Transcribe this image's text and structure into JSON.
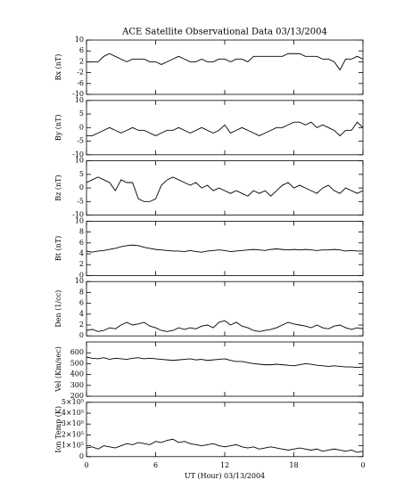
{
  "chart_data": [
    {
      "type": "line",
      "title": "ACE Satellite Observational Data   03/13/2004",
      "ylabel": "Bx (nT)",
      "color": "#000000",
      "xlim": [
        0,
        24
      ],
      "xticks": [
        0,
        6,
        12,
        18,
        {
          "value": 24,
          "label": "0"
        }
      ],
      "ylim": [
        -10,
        10
      ],
      "yticks": [
        -10,
        -6,
        -2,
        2,
        6,
        10
      ],
      "x": [
        0,
        0.5,
        1,
        1.5,
        2,
        2.5,
        3,
        3.5,
        4,
        4.5,
        5,
        5.5,
        6,
        6.5,
        7,
        7.5,
        8,
        8.5,
        9,
        9.5,
        10,
        10.5,
        11,
        11.5,
        12,
        12.5,
        13,
        13.5,
        14,
        14.5,
        15,
        15.5,
        16,
        16.5,
        17,
        17.5,
        18,
        18.5,
        19,
        19.5,
        20,
        20.5,
        21,
        21.5,
        22,
        22.5,
        23,
        23.5,
        24
      ],
      "values": [
        2,
        2,
        2,
        4,
        5,
        4,
        3,
        2,
        3,
        3,
        3,
        2,
        2,
        1,
        2,
        3,
        4,
        3,
        2,
        2,
        3,
        2,
        2,
        3,
        3,
        2,
        3,
        3,
        2,
        4,
        4,
        4,
        4,
        4,
        4,
        5,
        5,
        5,
        4,
        4,
        4,
        3,
        3,
        2,
        -1,
        3,
        3,
        4,
        3
      ]
    },
    {
      "type": "line",
      "ylabel": "By (nT)",
      "color": "#000000",
      "xlim": [
        0,
        24
      ],
      "xticks": [
        0,
        6,
        12,
        18,
        {
          "value": 24,
          "label": "0"
        }
      ],
      "ylim": [
        -10,
        10
      ],
      "yticks": [
        -10,
        -5,
        0,
        5,
        10
      ],
      "x": [
        0,
        0.5,
        1,
        1.5,
        2,
        2.5,
        3,
        3.5,
        4,
        4.5,
        5,
        5.5,
        6,
        6.5,
        7,
        7.5,
        8,
        8.5,
        9,
        9.5,
        10,
        10.5,
        11,
        11.5,
        12,
        12.5,
        13,
        13.5,
        14,
        14.5,
        15,
        15.5,
        16,
        16.5,
        17,
        17.5,
        18,
        18.5,
        19,
        19.5,
        20,
        20.5,
        21,
        21.5,
        22,
        22.5,
        23,
        23.5,
        24
      ],
      "values": [
        -3,
        -3,
        -2,
        -1,
        0,
        -1,
        -2,
        -1,
        0,
        -1,
        -1,
        -2,
        -3,
        -2,
        -1,
        -1,
        0,
        -1,
        -2,
        -1,
        0,
        -1,
        -2,
        -1,
        1,
        -2,
        -1,
        0,
        -1,
        -2,
        -3,
        -2,
        -1,
        0,
        0,
        1,
        2,
        2,
        1,
        2,
        0,
        1,
        0,
        -1,
        -3,
        -1,
        -1,
        2,
        0
      ]
    },
    {
      "type": "line",
      "ylabel": "Bz (nT)",
      "color": "#000000",
      "xlim": [
        0,
        24
      ],
      "xticks": [
        0,
        6,
        12,
        18,
        {
          "value": 24,
          "label": "0"
        }
      ],
      "ylim": [
        -10,
        10
      ],
      "yticks": [
        -10,
        -5,
        0,
        5,
        10
      ],
      "x": [
        0,
        0.5,
        1,
        1.5,
        2,
        2.5,
        3,
        3.5,
        4,
        4.5,
        5,
        5.5,
        6,
        6.5,
        7,
        7.5,
        8,
        8.5,
        9,
        9.5,
        10,
        10.5,
        11,
        11.5,
        12,
        12.5,
        13,
        13.5,
        14,
        14.5,
        15,
        15.5,
        16,
        16.5,
        17,
        17.5,
        18,
        18.5,
        19,
        19.5,
        20,
        20.5,
        21,
        21.5,
        22,
        22.5,
        23,
        23.5,
        24
      ],
      "values": [
        2,
        3,
        4,
        3,
        2,
        -1,
        3,
        2,
        2,
        -4,
        -5,
        -5,
        -4,
        1,
        3,
        4,
        3,
        2,
        1,
        2,
        0,
        1,
        -1,
        0,
        -1,
        -2,
        -1,
        -2,
        -3,
        -1,
        -2,
        -1,
        -3,
        -1,
        1,
        2,
        0,
        1,
        0,
        -1,
        -2,
        0,
        1,
        -1,
        -2,
        0,
        -1,
        -2,
        -1
      ]
    },
    {
      "type": "line",
      "ylabel": "Bt (nT)",
      "color": "#000000",
      "xlim": [
        0,
        24
      ],
      "xticks": [
        0,
        6,
        12,
        18,
        {
          "value": 24,
          "label": "0"
        }
      ],
      "ylim": [
        0,
        10
      ],
      "yticks": [
        0,
        2,
        4,
        6,
        8,
        10
      ],
      "x": [
        0,
        0.5,
        1,
        1.5,
        2,
        2.5,
        3,
        3.5,
        4,
        4.5,
        5,
        5.5,
        6,
        6.5,
        7,
        7.5,
        8,
        8.5,
        9,
        9.5,
        10,
        10.5,
        11,
        11.5,
        12,
        12.5,
        13,
        13.5,
        14,
        14.5,
        15,
        15.5,
        16,
        16.5,
        17,
        17.5,
        18,
        18.5,
        19,
        19.5,
        20,
        20.5,
        21,
        21.5,
        22,
        22.5,
        23,
        23.5,
        24
      ],
      "values": [
        4.5,
        4.3,
        4.5,
        4.6,
        4.8,
        5,
        5.3,
        5.5,
        5.6,
        5.5,
        5.2,
        5,
        4.8,
        4.7,
        4.6,
        4.5,
        4.5,
        4.4,
        4.6,
        4.4,
        4.3,
        4.5,
        4.6,
        4.7,
        4.6,
        4.4,
        4.5,
        4.6,
        4.7,
        4.8,
        4.7,
        4.6,
        4.8,
        4.9,
        4.8,
        4.7,
        4.8,
        4.7,
        4.8,
        4.7,
        4.6,
        4.7,
        4.7,
        4.8,
        4.7,
        4.5,
        4.6,
        4.5,
        4.5
      ]
    },
    {
      "type": "line",
      "ylabel": "Den (1/cc)",
      "color": "#000000",
      "xlim": [
        0,
        24
      ],
      "xticks": [
        0,
        6,
        12,
        18,
        {
          "value": 24,
          "label": "0"
        }
      ],
      "ylim": [
        0,
        10
      ],
      "yticks": [
        0,
        2,
        4,
        6,
        8,
        10
      ],
      "x": [
        0,
        0.5,
        1,
        1.5,
        2,
        2.5,
        3,
        3.5,
        4,
        4.5,
        5,
        5.5,
        6,
        6.5,
        7,
        7.5,
        8,
        8.5,
        9,
        9.5,
        10,
        10.5,
        11,
        11.5,
        12,
        12.5,
        13,
        13.5,
        14,
        14.5,
        15,
        15.5,
        16,
        16.5,
        17,
        17.5,
        18,
        18.5,
        19,
        19.5,
        20,
        20.5,
        21,
        21.5,
        22,
        22.5,
        23,
        23.5,
        24
      ],
      "values": [
        1,
        1.2,
        0.8,
        1,
        1.5,
        1.3,
        2,
        2.5,
        2,
        2.2,
        2.5,
        1.8,
        1.5,
        1,
        0.8,
        1,
        1.5,
        1.2,
        1.5,
        1.3,
        1.8,
        2,
        1.5,
        2.5,
        2.8,
        2,
        2.5,
        1.8,
        1.5,
        1,
        0.8,
        1,
        1.2,
        1.5,
        2,
        2.5,
        2.2,
        2,
        1.8,
        1.5,
        2,
        1.5,
        1.3,
        1.8,
        2,
        1.5,
        1.2,
        1.5,
        1.3
      ]
    },
    {
      "type": "line",
      "ylabel": "Vel (Km/sec)",
      "color": "#000000",
      "xlim": [
        0,
        24
      ],
      "xticks": [
        0,
        6,
        12,
        18,
        {
          "value": 24,
          "label": "0"
        }
      ],
      "ylim": [
        200,
        700
      ],
      "yticks": [
        200,
        300,
        400,
        500,
        600
      ],
      "x": [
        0,
        0.5,
        1,
        1.5,
        2,
        2.5,
        3,
        3.5,
        4,
        4.5,
        5,
        5.5,
        6,
        6.5,
        7,
        7.5,
        8,
        8.5,
        9,
        9.5,
        10,
        10.5,
        11,
        11.5,
        12,
        12.5,
        13,
        13.5,
        14,
        14.5,
        15,
        15.5,
        16,
        16.5,
        17,
        17.5,
        18,
        18.5,
        19,
        19.5,
        20,
        20.5,
        21,
        21.5,
        22,
        22.5,
        23,
        23.5,
        24
      ],
      "values": [
        560,
        550,
        545,
        555,
        540,
        550,
        545,
        540,
        550,
        555,
        545,
        550,
        545,
        540,
        535,
        530,
        535,
        540,
        545,
        535,
        540,
        530,
        535,
        540,
        545,
        530,
        520,
        520,
        510,
        500,
        495,
        490,
        490,
        495,
        490,
        485,
        480,
        490,
        500,
        495,
        485,
        480,
        475,
        480,
        475,
        470,
        470,
        465,
        470
      ]
    },
    {
      "type": "line",
      "ylabel": "Ion Temp (K)",
      "xlabel": "UT (Hour)   03/13/2004",
      "color": "#000000",
      "xlim": [
        0,
        24
      ],
      "xticks": [
        0,
        6,
        12,
        18,
        {
          "value": 24,
          "label": "0"
        }
      ],
      "ylim": [
        0,
        500000
      ],
      "yticks": [
        0,
        {
          "value": 100000,
          "label": "1×10⁵"
        },
        {
          "value": 200000,
          "label": "2×10⁵"
        },
        {
          "value": 300000,
          "label": "3×10⁵"
        },
        {
          "value": 400000,
          "label": "4×10⁵"
        },
        {
          "value": 500000,
          "label": "5×10⁵"
        }
      ],
      "x": [
        0,
        0.5,
        1,
        1.5,
        2,
        2.5,
        3,
        3.5,
        4,
        4.5,
        5,
        5.5,
        6,
        6.5,
        7,
        7.5,
        8,
        8.5,
        9,
        9.5,
        10,
        10.5,
        11,
        11.5,
        12,
        12.5,
        13,
        13.5,
        14,
        14.5,
        15,
        15.5,
        16,
        16.5,
        17,
        17.5,
        18,
        18.5,
        19,
        19.5,
        20,
        20.5,
        21,
        21.5,
        22,
        22.5,
        23,
        23.5,
        24
      ],
      "values": [
        80000,
        90000,
        70000,
        100000,
        90000,
        80000,
        100000,
        120000,
        110000,
        130000,
        120000,
        110000,
        140000,
        130000,
        150000,
        160000,
        130000,
        140000,
        120000,
        110000,
        100000,
        110000,
        120000,
        100000,
        90000,
        100000,
        110000,
        90000,
        80000,
        90000,
        70000,
        80000,
        90000,
        80000,
        70000,
        60000,
        70000,
        80000,
        70000,
        60000,
        70000,
        50000,
        60000,
        70000,
        60000,
        50000,
        60000,
        40000,
        50000
      ]
    }
  ]
}
